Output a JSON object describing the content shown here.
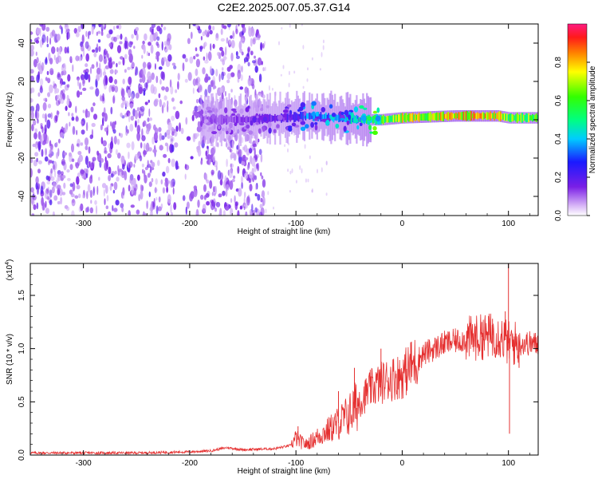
{
  "title": "C2E2.2025.007.05.37.G14",
  "colors": {
    "signal_line": "#e53030",
    "spectrogram_low": "#e4ccf8",
    "spectrogram_mid": "#7a1fe6",
    "spectrogram_high": "#ff1a3a",
    "axis": "#000000"
  },
  "chart_data": [
    {
      "type": "heatmap",
      "name": "spectrogram",
      "xlabel": "Height of straight line (km)",
      "ylabel": "Frequency (Hz)",
      "xlim": [
        -350,
        128
      ],
      "ylim": [
        -50,
        50
      ],
      "xticks": [
        -300,
        -200,
        -100,
        0,
        100
      ],
      "yticks": [
        -40,
        -20,
        0,
        20,
        40
      ],
      "colorbar": {
        "label": "Normalized spectral amplitude",
        "range": [
          0,
          1
        ],
        "ticks": [
          "0.0",
          "0.2",
          "0.4",
          "0.6",
          "0.8"
        ],
        "colormap": "rainbow (purple to red)"
      },
      "description_ridge": {
        "x": [
          -190,
          -150,
          -110,
          -90,
          -60,
          -40,
          -20,
          0,
          50,
          90,
          100,
          128
        ],
        "frequency_center": [
          0,
          0,
          1,
          2,
          1,
          0,
          0,
          1,
          2,
          2,
          1,
          1
        ],
        "amplitude": [
          0.25,
          0.3,
          0.35,
          0.5,
          0.55,
          0.6,
          0.75,
          0.85,
          0.9,
          0.9,
          0.75,
          0.8
        ]
      }
    },
    {
      "type": "line",
      "name": "snr",
      "xlabel": "Height of straight line (km)",
      "ylabel": "SNR (10 * v/v)",
      "ylabel_exponent": "(x10",
      "ylabel_exponent_power": "4",
      "ylabel_exponent_close": ")",
      "xlim": [
        -350,
        128
      ],
      "ylim": [
        0,
        1.8
      ],
      "xticks": [
        -300,
        -200,
        -100,
        0,
        100
      ],
      "yticks": [
        "0.0",
        "0.5",
        "1.0",
        "1.5"
      ],
      "series": [
        {
          "x": [
            -350,
            -300,
            -250,
            -200,
            -180,
            -165,
            -150,
            -120,
            -105,
            -100,
            -95,
            -90,
            -80,
            -70,
            -60,
            -50,
            -40,
            -30,
            -20,
            -10,
            0,
            10,
            20,
            30,
            40,
            50,
            60,
            70,
            80,
            90,
            95,
            100,
            105,
            110,
            120,
            128
          ],
          "y": [
            0.02,
            0.02,
            0.02,
            0.03,
            0.04,
            0.07,
            0.05,
            0.06,
            0.09,
            0.16,
            0.12,
            0.1,
            0.17,
            0.23,
            0.3,
            0.38,
            0.5,
            0.62,
            0.68,
            0.72,
            0.75,
            0.85,
            0.95,
            1.0,
            1.05,
            1.07,
            1.09,
            1.1,
            1.12,
            1.13,
            1.1,
            1.05,
            1.05,
            1.05,
            1.05,
            1.04
          ],
          "spikes": [
            {
              "x": -98,
              "y": 0.27
            },
            {
              "x": -60,
              "y": 0.6
            },
            {
              "x": -45,
              "y": 0.82
            },
            {
              "x": -20,
              "y": 1.0
            },
            {
              "x": 8,
              "y": 1.06
            },
            {
              "x": 75,
              "y": 1.25
            },
            {
              "x": 85,
              "y": 1.28
            },
            {
              "x": 97,
              "y": 1.35
            },
            {
              "x": 100,
              "y": 1.8
            },
            {
              "x": 101,
              "y": 0.2
            },
            {
              "x": 110,
              "y": 0.82
            }
          ]
        }
      ]
    }
  ]
}
